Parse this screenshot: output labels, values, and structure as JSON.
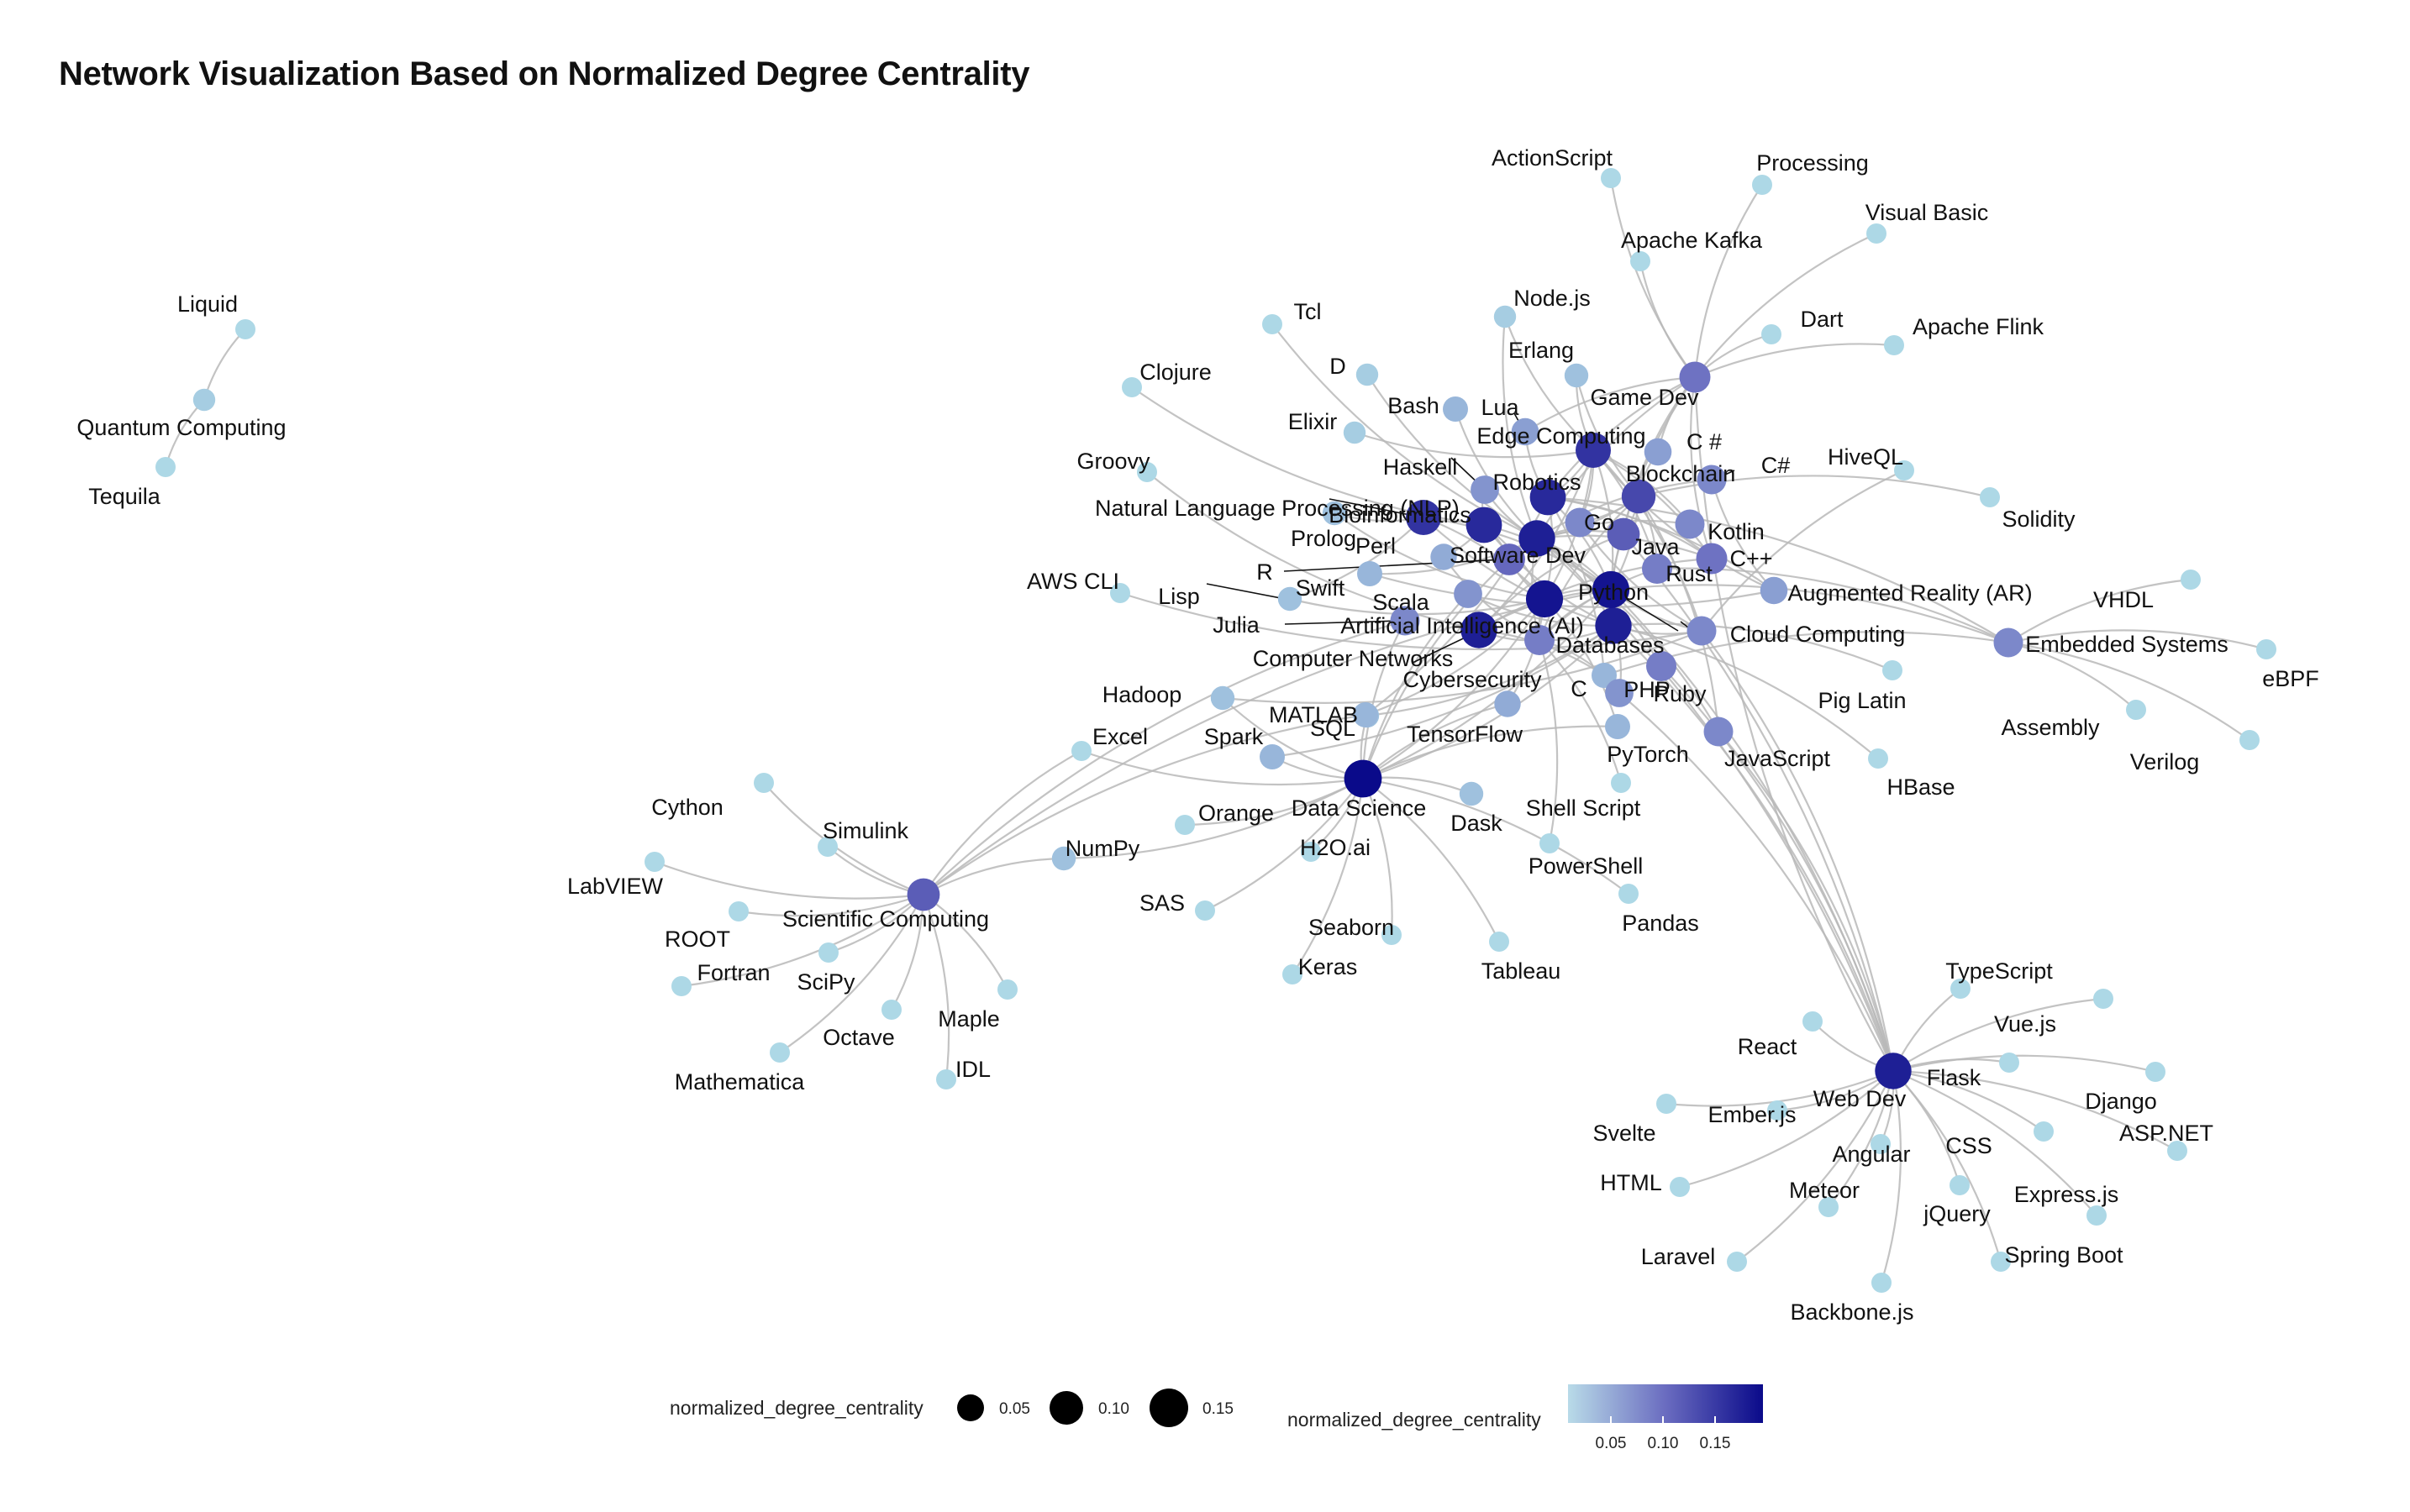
{
  "title": "Network Visualization Based on Normalized Degree Centrality",
  "colors": {
    "low": "#add8e6",
    "high": "#00008b",
    "edge": "#b8b8b8",
    "leader": "#111111"
  },
  "legend": {
    "size_title": "normalized_degree_centrality",
    "size_breaks": [
      "0.05",
      "0.10",
      "0.15"
    ],
    "color_title": "normalized_degree_centrality",
    "color_breaks": [
      "0.05",
      "0.10",
      "0.15"
    ]
  },
  "nodes": [
    {
      "name": "Liquid",
      "c": 0.01
    },
    {
      "name": "Quantum Computing",
      "c": 0.02
    },
    {
      "name": "Tequila",
      "c": 0.01
    },
    {
      "name": "ActionScript",
      "c": 0.01
    },
    {
      "name": "Processing",
      "c": 0.01
    },
    {
      "name": "Visual Basic",
      "c": 0.01
    },
    {
      "name": "Apache Kafka",
      "c": 0.01
    },
    {
      "name": "Node.js",
      "c": 0.02
    },
    {
      "name": "Dart",
      "c": 0.01
    },
    {
      "name": "Apache Flink",
      "c": 0.01
    },
    {
      "name": "Tcl",
      "c": 0.01
    },
    {
      "name": "D",
      "c": 0.02
    },
    {
      "name": "Erlang",
      "c": 0.03
    },
    {
      "name": "Game Dev",
      "c": 0.1
    },
    {
      "name": "Clojure",
      "c": 0.01
    },
    {
      "name": "Bash",
      "c": 0.04
    },
    {
      "name": "Lua",
      "c": 0.06
    },
    {
      "name": "Edge Computing",
      "c": 0.16
    },
    {
      "name": "C #",
      "c": 0.06
    },
    {
      "name": "Elixir",
      "c": 0.02
    },
    {
      "name": "HiveQL",
      "c": 0.01
    },
    {
      "name": "Groovy",
      "c": 0.01
    },
    {
      "name": "Haskell",
      "c": 0.07
    },
    {
      "name": "Robotics",
      "c": 0.17
    },
    {
      "name": "Blockchain",
      "c": 0.14
    },
    {
      "name": "C#",
      "c": 0.08
    },
    {
      "name": "Solidity",
      "c": 0.01
    },
    {
      "name": "Natural Language Processing (NLP)",
      "c": 0.16
    },
    {
      "name": "Bioinformatics",
      "c": 0.17
    },
    {
      "name": "Go",
      "c": 0.08
    },
    {
      "name": "Kotlin",
      "c": 0.08
    },
    {
      "name": "Prolog",
      "c": 0.03
    },
    {
      "name": "Perl",
      "c": 0.05
    },
    {
      "name": "Software Dev",
      "c": 0.18
    },
    {
      "name": "Java",
      "c": 0.12
    },
    {
      "name": "C++",
      "c": 0.1
    },
    {
      "name": "R",
      "c": 0.11
    },
    {
      "name": "AWS CLI",
      "c": 0.01
    },
    {
      "name": "Swift",
      "c": 0.04
    },
    {
      "name": "Lisp",
      "c": 0.03
    },
    {
      "name": "Scala",
      "c": 0.07
    },
    {
      "name": "Python",
      "c": 0.19
    },
    {
      "name": "Rust",
      "c": 0.09
    },
    {
      "name": "Augmented Reality (AR)",
      "c": 0.06
    },
    {
      "name": "VHDL",
      "c": 0.01
    },
    {
      "name": "Julia",
      "c": 0.08
    },
    {
      "name": "Artificial Intelligence (AI)",
      "c": 0.19
    },
    {
      "name": "Cloud Computing",
      "c": 0.08
    },
    {
      "name": "Embedded Systems",
      "c": 0.08
    },
    {
      "name": "eBPF",
      "c": 0.01
    },
    {
      "name": "Computer Networks",
      "c": 0.18
    },
    {
      "name": "Databases",
      "c": 0.18
    },
    {
      "name": "Ruby",
      "c": 0.09
    },
    {
      "name": "Hadoop",
      "c": 0.03
    },
    {
      "name": "Cybersecurity",
      "c": 0.09
    },
    {
      "name": "C",
      "c": 0.04
    },
    {
      "name": "PHP",
      "c": 0.07
    },
    {
      "name": "Pig Latin",
      "c": 0.01
    },
    {
      "name": "MATLAB",
      "c": 0.04
    },
    {
      "name": "TensorFlow",
      "c": 0.05
    },
    {
      "name": "Assembly",
      "c": 0.01
    },
    {
      "name": "Excel",
      "c": 0.01
    },
    {
      "name": "Verilog",
      "c": 0.01
    },
    {
      "name": "SQL",
      "c": 0.03
    },
    {
      "name": "Spark",
      "c": 0.04
    },
    {
      "name": "PyTorch",
      "c": 0.04
    },
    {
      "name": "JavaScript",
      "c": 0.08
    },
    {
      "name": "HBase",
      "c": 0.01
    },
    {
      "name": "Data Science",
      "c": 0.2
    },
    {
      "name": "Dask",
      "c": 0.03
    },
    {
      "name": "Shell Script",
      "c": 0.01
    },
    {
      "name": "Cython",
      "c": 0.01
    },
    {
      "name": "Simulink",
      "c": 0.01
    },
    {
      "name": "Orange",
      "c": 0.01
    },
    {
      "name": "NumPy",
      "c": 0.03
    },
    {
      "name": "H2O.ai",
      "c": 0.01
    },
    {
      "name": "LabVIEW",
      "c": 0.01
    },
    {
      "name": "PowerShell",
      "c": 0.01
    },
    {
      "name": "Scientific Computing",
      "c": 0.12
    },
    {
      "name": "SAS",
      "c": 0.01
    },
    {
      "name": "ROOT",
      "c": 0.01
    },
    {
      "name": "Seaborn",
      "c": 0.01
    },
    {
      "name": "Pandas",
      "c": 0.01
    },
    {
      "name": "SciPy",
      "c": 0.01
    },
    {
      "name": "Fortran",
      "c": 0.01
    },
    {
      "name": "Keras",
      "c": 0.01
    },
    {
      "name": "Tableau",
      "c": 0.01
    },
    {
      "name": "Maple",
      "c": 0.01
    },
    {
      "name": "Octave",
      "c": 0.01
    },
    {
      "name": "Mathematica",
      "c": 0.01
    },
    {
      "name": "IDL",
      "c": 0.01
    },
    {
      "name": "TypeScript",
      "c": 0.01
    },
    {
      "name": "Vue.js",
      "c": 0.01
    },
    {
      "name": "React",
      "c": 0.01
    },
    {
      "name": "Web Dev",
      "c": 0.18
    },
    {
      "name": "Flask",
      "c": 0.01
    },
    {
      "name": "Django",
      "c": 0.01
    },
    {
      "name": "Ember.js",
      "c": 0.01
    },
    {
      "name": "Svelte",
      "c": 0.01
    },
    {
      "name": "ASP.NET",
      "c": 0.01
    },
    {
      "name": "HTML",
      "c": 0.01
    },
    {
      "name": "Angular",
      "c": 0.01
    },
    {
      "name": "CSS",
      "c": 0.01
    },
    {
      "name": "Meteor",
      "c": 0.01
    },
    {
      "name": "jQuery",
      "c": 0.01
    },
    {
      "name": "Express.js",
      "c": 0.01
    },
    {
      "name": "Laravel",
      "c": 0.01
    },
    {
      "name": "Spring Boot",
      "c": 0.01
    },
    {
      "name": "Backbone.js",
      "c": 0.01
    }
  ],
  "edges": [
    [
      "Liquid",
      "Quantum Computing"
    ],
    [
      "Quantum Computing",
      "Tequila"
    ],
    [
      "ActionScript",
      "Game Dev"
    ],
    [
      "Processing",
      "Game Dev"
    ],
    [
      "Visual Basic",
      "Game Dev"
    ],
    [
      "Apache Kafka",
      "Game Dev"
    ],
    [
      "Dart",
      "Game Dev"
    ],
    [
      "Apache Flink",
      "Game Dev"
    ],
    [
      "Game Dev",
      "C++"
    ],
    [
      "Game Dev",
      "Lua"
    ],
    [
      "Game Dev",
      "C #"
    ],
    [
      "Game Dev",
      "Python"
    ],
    [
      "Game Dev",
      "Java"
    ],
    [
      "Game Dev",
      "Robotics"
    ],
    [
      "Game Dev",
      "Software Dev"
    ],
    [
      "Game Dev",
      "Web Dev"
    ],
    [
      "Node.js",
      "Edge Computing"
    ],
    [
      "Node.js",
      "Software Dev"
    ],
    [
      "Erlang",
      "Edge Computing"
    ],
    [
      "Erlang",
      "Blockchain"
    ],
    [
      "Tcl",
      "Software Dev"
    ],
    [
      "D",
      "Software Dev"
    ],
    [
      "Clojure",
      "Bioinformatics"
    ],
    [
      "Bash",
      "Software Dev"
    ],
    [
      "Lua",
      "Robotics"
    ],
    [
      "Elixir",
      "Edge Computing"
    ],
    [
      "Groovy",
      "Computer Networks"
    ],
    [
      "Haskell",
      "Bioinformatics"
    ],
    [
      "HiveQL",
      "Cloud Computing"
    ],
    [
      "Solidity",
      "Blockchain"
    ],
    [
      "C#",
      "Software Dev"
    ],
    [
      "Kotlin",
      "Software Dev"
    ],
    [
      "Prolog",
      "Artificial Intelligence (AI)"
    ],
    [
      "Perl",
      "Bioinformatics"
    ],
    [
      "AWS CLI",
      "Cloud Computing"
    ],
    [
      "Lisp",
      "Artificial Intelligence (AI)"
    ],
    [
      "Julia",
      "Data Science"
    ],
    [
      "R",
      "Data Science"
    ],
    [
      "Swift",
      "Software Dev"
    ],
    [
      "Scala",
      "Data Science"
    ],
    [
      "Augmented Reality (AR)",
      "Robotics"
    ],
    [
      "VHDL",
      "Embedded Systems"
    ],
    [
      "eBPF",
      "Embedded Systems"
    ],
    [
      "Assembly",
      "Embedded Systems"
    ],
    [
      "Verilog",
      "Embedded Systems"
    ],
    [
      "Embedded Systems",
      "C"
    ],
    [
      "Embedded Systems",
      "Robotics"
    ],
    [
      "Embedded Systems",
      "Python"
    ],
    [
      "Embedded Systems",
      "Rust"
    ],
    [
      "Pig Latin",
      "Databases"
    ],
    [
      "HBase",
      "Databases"
    ],
    [
      "Hadoop",
      "Data Science"
    ],
    [
      "Hadoop",
      "Cloud Computing"
    ],
    [
      "Excel",
      "Scientific Computing"
    ],
    [
      "Excel",
      "Data Science"
    ],
    [
      "MATLAB",
      "Scientific Computing"
    ],
    [
      "NumPy",
      "Scientific Computing"
    ],
    [
      "NumPy",
      "Data Science"
    ],
    [
      "Python",
      "Scientific Computing"
    ],
    [
      "Julia",
      "Scientific Computing"
    ],
    [
      "Cython",
      "Scientific Computing"
    ],
    [
      "Simulink",
      "Scientific Computing"
    ],
    [
      "LabVIEW",
      "Scientific Computing"
    ],
    [
      "ROOT",
      "Scientific Computing"
    ],
    [
      "Fortran",
      "Scientific Computing"
    ],
    [
      "SciPy",
      "Scientific Computing"
    ],
    [
      "Octave",
      "Scientific Computing"
    ],
    [
      "Mathematica",
      "Scientific Computing"
    ],
    [
      "Maple",
      "Scientific Computing"
    ],
    [
      "IDL",
      "Scientific Computing"
    ],
    [
      "SQL",
      "Data Science"
    ],
    [
      "Spark",
      "Data Science"
    ],
    [
      "TensorFlow",
      "Data Science"
    ],
    [
      "PyTorch",
      "Data Science"
    ],
    [
      "Dask",
      "Data Science"
    ],
    [
      "Orange",
      "Data Science"
    ],
    [
      "H2O.ai",
      "Data Science"
    ],
    [
      "SAS",
      "Data Science"
    ],
    [
      "Seaborn",
      "Data Science"
    ],
    [
      "Keras",
      "Data Science"
    ],
    [
      "Tableau",
      "Data Science"
    ],
    [
      "Pandas",
      "Data Science"
    ],
    [
      "PowerShell",
      "Cybersecurity"
    ],
    [
      "Shell Script",
      "Cybersecurity"
    ],
    [
      "Data Science",
      "Python"
    ],
    [
      "Data Science",
      "Artificial Intelligence (AI)"
    ],
    [
      "Data Science",
      "Databases"
    ],
    [
      "TypeScript",
      "Web Dev"
    ],
    [
      "Vue.js",
      "Web Dev"
    ],
    [
      "React",
      "Web Dev"
    ],
    [
      "Flask",
      "Web Dev"
    ],
    [
      "Django",
      "Web Dev"
    ],
    [
      "Ember.js",
      "Web Dev"
    ],
    [
      "Svelte",
      "Web Dev"
    ],
    [
      "ASP.NET",
      "Web Dev"
    ],
    [
      "HTML",
      "Web Dev"
    ],
    [
      "Angular",
      "Web Dev"
    ],
    [
      "CSS",
      "Web Dev"
    ],
    [
      "Meteor",
      "Web Dev"
    ],
    [
      "jQuery",
      "Web Dev"
    ],
    [
      "Express.js",
      "Web Dev"
    ],
    [
      "Laravel",
      "Web Dev"
    ],
    [
      "Spring Boot",
      "Web Dev"
    ],
    [
      "Backbone.js",
      "Web Dev"
    ],
    [
      "Web Dev",
      "JavaScript"
    ],
    [
      "Web Dev",
      "PHP"
    ],
    [
      "Web Dev",
      "Ruby"
    ],
    [
      "Web Dev",
      "Python"
    ],
    [
      "Web Dev",
      "Java"
    ],
    [
      "Web Dev",
      "Databases"
    ],
    [
      "Web Dev",
      "Cloud Computing"
    ],
    [
      "Web Dev",
      "Software Dev"
    ],
    [
      "Python",
      "Artificial Intelligence (AI)"
    ],
    [
      "Python",
      "Databases"
    ],
    [
      "Python",
      "Software Dev"
    ],
    [
      "Python",
      "Computer Networks"
    ],
    [
      "Python",
      "Robotics"
    ],
    [
      "Python",
      "Bioinformatics"
    ],
    [
      "Python",
      "Natural Language Processing (NLP)"
    ],
    [
      "Python",
      "Edge Computing"
    ],
    [
      "Python",
      "Blockchain"
    ],
    [
      "Python",
      "Cybersecurity"
    ],
    [
      "Python",
      "Cloud Computing"
    ],
    [
      "Java",
      "Software Dev"
    ],
    [
      "Java",
      "Databases"
    ],
    [
      "Java",
      "Computer Networks"
    ],
    [
      "Java",
      "Blockchain"
    ],
    [
      "C++",
      "Robotics"
    ],
    [
      "C++",
      "Software Dev"
    ],
    [
      "C++",
      "Edge Computing"
    ],
    [
      "C++",
      "Computer Networks"
    ],
    [
      "Go",
      "Cloud Computing"
    ],
    [
      "Go",
      "Edge Computing"
    ],
    [
      "Go",
      "Blockchain"
    ],
    [
      "Rust",
      "Blockchain"
    ],
    [
      "Rust",
      "Edge Computing"
    ],
    [
      "Rust",
      "Cybersecurity"
    ],
    [
      "Ruby",
      "Software Dev"
    ],
    [
      "PHP",
      "Databases"
    ],
    [
      "JavaScript",
      "Software Dev"
    ],
    [
      "JavaScript",
      "Blockchain"
    ],
    [
      "C",
      "Computer Networks"
    ],
    [
      "C",
      "Cybersecurity"
    ],
    [
      "C",
      "Robotics"
    ],
    [
      "R",
      "Bioinformatics"
    ],
    [
      "R",
      "Artificial Intelligence (AI)"
    ],
    [
      "Perl",
      "Cybersecurity"
    ],
    [
      "Haskell",
      "Software Dev"
    ],
    [
      "Scala",
      "Databases"
    ],
    [
      "Swift",
      "Augmented Reality (AR)"
    ],
    [
      "C#",
      "Augmented Reality (AR)"
    ],
    [
      "C #",
      "Blockchain"
    ],
    [
      "Kotlin",
      "Edge Computing"
    ],
    [
      "Artificial Intelligence (AI)",
      "Robotics"
    ],
    [
      "Artificial Intelligence (AI)",
      "Natural Language Processing (NLP)"
    ],
    [
      "Artificial Intelligence (AI)",
      "Bioinformatics"
    ],
    [
      "Artificial Intelligence (AI)",
      "Edge Computing"
    ],
    [
      "Artificial Intelligence (AI)",
      "Cybersecurity"
    ],
    [
      "Computer Networks",
      "Cybersecurity"
    ],
    [
      "Computer Networks",
      "Edge Computing"
    ],
    [
      "Databases",
      "Cloud Computing"
    ],
    [
      "Databases",
      "Software Dev"
    ],
    [
      "Cloud Computing",
      "Edge Computing"
    ],
    [
      "Software Dev",
      "Cybersecurity"
    ],
    [
      "Software Dev",
      "Blockchain"
    ],
    [
      "Robotics",
      "Edge Computing"
    ],
    [
      "Bioinformatics",
      "Databases"
    ],
    [
      "Natural Language Processing (NLP)",
      "Databases"
    ],
    [
      "Blockchain",
      "Cybersecurity"
    ],
    [
      "Cybersecurity",
      "Databases"
    ],
    [
      "Edge Computing",
      "Augmented Reality (AR)"
    ],
    [
      "MATLAB",
      "Robotics"
    ],
    [
      "MATLAB",
      "Artificial Intelligence (AI)"
    ],
    [
      "TensorFlow",
      "Artificial Intelligence (AI)"
    ],
    [
      "PyTorch",
      "Artificial Intelligence (AI)"
    ],
    [
      "SQL",
      "Databases"
    ],
    [
      "Spark",
      "Databases"
    ],
    [
      "Prolog",
      "Natural Language Processing (NLP)"
    ],
    [
      "Lisp",
      "Natural Language Processing (NLP)"
    ]
  ]
}
